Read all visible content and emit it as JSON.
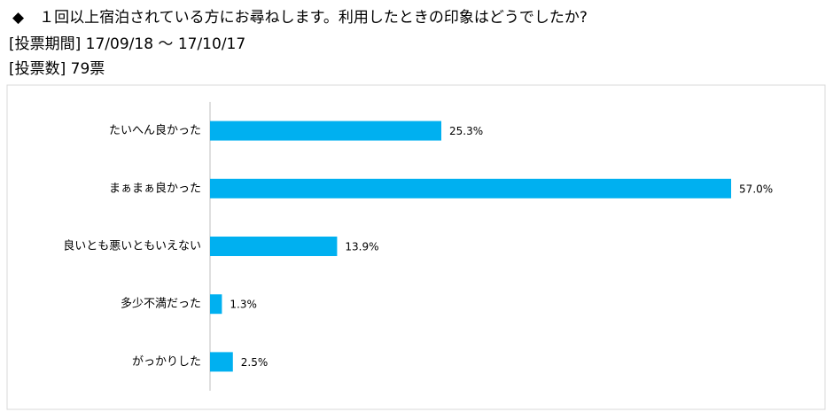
{
  "chart_data": {
    "type": "barh",
    "title": "◆　１回以上宿泊されている方にお尋ねします。利用したときの印象はどうでしたか?",
    "subtitle": [
      "[投票期間] 17/09/18 ～ 17/10/17",
      "[投票数] 79票"
    ],
    "categories": [
      "たいへん良かった",
      "まぁまぁ良かった",
      "良いとも悪いともいえない",
      "多少不満だった",
      "がっかりした"
    ],
    "values": [
      25.3,
      57.0,
      13.9,
      1.3,
      2.5
    ],
    "value_labels": [
      "25.3%",
      "57.0%",
      "13.9%",
      "1.3%",
      "2.5%"
    ],
    "color": "#00b0f0",
    "xlim": [
      0,
      60
    ]
  }
}
